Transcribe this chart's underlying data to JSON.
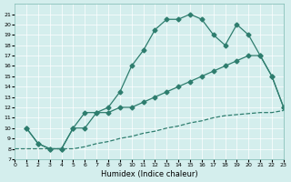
{
  "xlabel": "Humidex (Indice chaleur)",
  "ylabel": "",
  "bg_color": "#d4eeed",
  "line_color": "#2e7d6e",
  "grid_color": "#ffffff",
  "xlim": [
    0,
    23
  ],
  "ylim": [
    7,
    22
  ],
  "xticks": [
    0,
    1,
    2,
    3,
    4,
    5,
    6,
    7,
    8,
    9,
    10,
    11,
    12,
    13,
    14,
    15,
    16,
    17,
    18,
    19,
    20,
    21,
    22,
    23
  ],
  "yticks": [
    7,
    8,
    9,
    10,
    11,
    12,
    13,
    14,
    15,
    16,
    17,
    18,
    19,
    20,
    21
  ],
  "line1_x": [
    1,
    2,
    3,
    4,
    5,
    6,
    7,
    8,
    9,
    10,
    11,
    12,
    13,
    14,
    15,
    16,
    17,
    18,
    19,
    20,
    21,
    22,
    23
  ],
  "line1_y": [
    10,
    8.5,
    8,
    8,
    10,
    11.5,
    11.5,
    12,
    13.5,
    16,
    17.5,
    19.5,
    20.5,
    20.5,
    21,
    20.5,
    19,
    18,
    20,
    19,
    17,
    15,
    12
  ],
  "line2_x": [
    1,
    2,
    3,
    4,
    5,
    6,
    7,
    8,
    9,
    10,
    11,
    12,
    13,
    14,
    15,
    16,
    17,
    18,
    19,
    20,
    21,
    22,
    23
  ],
  "line2_y": [
    10,
    8.5,
    8,
    8,
    10,
    10,
    11.5,
    11.5,
    12,
    12,
    12.5,
    13,
    13.5,
    14,
    14.5,
    15,
    15.5,
    16,
    16.5,
    17,
    17,
    15,
    12
  ],
  "line3_x": [
    0,
    3,
    4,
    5,
    6,
    7,
    8,
    9,
    10,
    11,
    12,
    13,
    14,
    15,
    16,
    17,
    18,
    19,
    20,
    21,
    22,
    23
  ],
  "line3_y": [
    8,
    8,
    8,
    8,
    8.2,
    8.5,
    8.7,
    9,
    9.2,
    9.5,
    9.7,
    10,
    10.2,
    10.5,
    10.7,
    11,
    11.2,
    11.3,
    11.4,
    11.5,
    11.5,
    11.7
  ]
}
